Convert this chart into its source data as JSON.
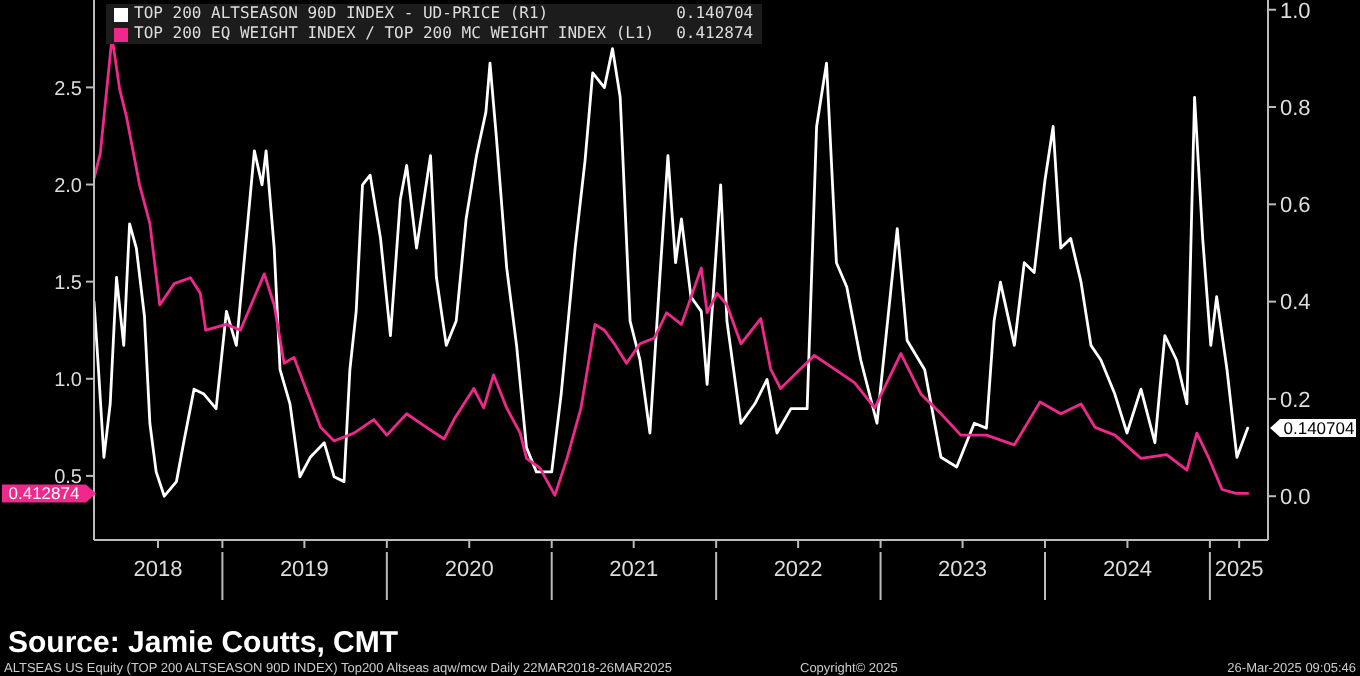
{
  "chart_data": {
    "type": "line",
    "legend": "top left",
    "grid": false,
    "marker": "none",
    "line_style": "solid",
    "xlim": [
      "2018-03-22",
      "2025-05-10"
    ],
    "xticks": [
      {
        "value": "2018-08-11",
        "label": "2018"
      },
      {
        "value": "2019-01-01",
        "label": null
      },
      {
        "value": "2019-07-02",
        "label": "2019"
      },
      {
        "value": "2020-01-01",
        "label": null
      },
      {
        "value": "2020-07-02",
        "label": "2020"
      },
      {
        "value": "2021-01-01",
        "label": null
      },
      {
        "value": "2021-07-02",
        "label": "2021"
      },
      {
        "value": "2022-01-01",
        "label": null
      },
      {
        "value": "2022-07-02",
        "label": "2022"
      },
      {
        "value": "2023-01-01",
        "label": null
      },
      {
        "value": "2023-07-02",
        "label": "2023"
      },
      {
        "value": "2024-01-01",
        "label": null
      },
      {
        "value": "2024-07-02",
        "label": "2024"
      },
      {
        "value": "2025-01-01",
        "label": null
      },
      {
        "value": "2025-03-07",
        "label": "2025"
      }
    ],
    "ylim": [
      0.17,
      2.95
    ],
    "yticks": [
      0.5,
      {
        "value": 1.0,
        "label": "1.0"
      },
      1.5,
      {
        "value": 2.0,
        "label": "2.0"
      },
      2.5
    ],
    "y2lim": [
      -0.09,
      1.02
    ],
    "y2ticks": [
      {
        "value": 0,
        "label": "0.0"
      },
      0.2,
      0.4,
      0.6,
      0.8,
      {
        "value": 1.0,
        "label": "1.0"
      }
    ],
    "annotations": [
      "Source: Jamie Coutts, CMT",
      "ALTSEAS US Equity (TOP 200 ALTSEASON 90D INDEX) Top200 Altseas aqw/mcw  Daily 22MAR2018-26MAR2025",
      "Copyright© 2025",
      "26-Mar-2025 09:05:46",
      "0.140704",
      "0.412874"
    ],
    "series": [
      {
        "name": "TOP 200 ALTSEASON 90D INDEX - UD-PRICE (R1)",
        "color": "#ffffff",
        "axis": "y2",
        "x": [
          "2018-03-22",
          "2018-04-01",
          "2018-04-13",
          "2018-04-27",
          "2018-05-11",
          "2018-05-27",
          "2018-06-09",
          "2018-06-24",
          "2018-07-12",
          "2018-07-24",
          "2018-08-07",
          "2018-08-25",
          "2018-09-21",
          "2018-10-07",
          "2018-10-30",
          "2018-11-21",
          "2018-12-18",
          "2019-01-10",
          "2019-02-01",
          "2019-02-23",
          "2019-03-13",
          "2019-03-30",
          "2019-04-08",
          "2019-04-26",
          "2019-05-09",
          "2019-05-31",
          "2019-06-22",
          "2019-07-15",
          "2019-08-15",
          "2019-09-06",
          "2019-09-28",
          "2019-10-11",
          "2019-10-25",
          "2019-11-08",
          "2019-11-25",
          "2019-12-18",
          "2020-01-09",
          "2020-01-31",
          "2020-02-14",
          "2020-03-07",
          "2020-04-07",
          "2020-04-20",
          "2020-05-12",
          "2020-06-03",
          "2020-06-25",
          "2020-07-18",
          "2020-08-08",
          "2020-08-17",
          "2020-08-31",
          "2020-09-23",
          "2020-10-15",
          "2020-11-06",
          "2020-11-28",
          "2021-01-01",
          "2021-01-22",
          "2021-02-22",
          "2021-03-16",
          "2021-04-02",
          "2021-04-28",
          "2021-05-16",
          "2021-06-02",
          "2021-06-24",
          "2021-07-16",
          "2021-08-07",
          "2021-08-29",
          "2021-09-16",
          "2021-10-03",
          "2021-10-16",
          "2021-11-06",
          "2021-11-29",
          "2021-12-12",
          "2022-01-11",
          "2022-01-25",
          "2022-02-25",
          "2022-03-28",
          "2022-04-24",
          "2022-05-16",
          "2022-06-16",
          "2022-07-22",
          "2022-08-12",
          "2022-09-03",
          "2022-09-25",
          "2022-10-18",
          "2022-11-18",
          "2022-12-24",
          "2023-02-07",
          "2023-03-01",
          "2023-04-09",
          "2023-05-15",
          "2023-06-19",
          "2023-07-28",
          "2023-08-24",
          "2023-09-10",
          "2023-09-24",
          "2023-10-25",
          "2023-11-16",
          "2023-12-08",
          "2024-01-01",
          "2024-01-19",
          "2024-02-05",
          "2024-02-27",
          "2024-03-21",
          "2024-04-12",
          "2024-05-04",
          "2024-06-04",
          "2024-07-01",
          "2024-08-01",
          "2024-09-01",
          "2024-09-23",
          "2024-10-19",
          "2024-11-11",
          "2024-11-28",
          "2024-12-16",
          "2025-01-03",
          "2025-01-16",
          "2025-02-08",
          "2025-03-02",
          "2025-03-26"
        ],
        "values": [
          0.4,
          0.26,
          0.08,
          0.19,
          0.45,
          0.31,
          0.56,
          0.51,
          0.37,
          0.15,
          0.05,
          0.0,
          0.03,
          0.11,
          0.22,
          0.21,
          0.18,
          0.38,
          0.31,
          0.53,
          0.71,
          0.64,
          0.71,
          0.51,
          0.26,
          0.19,
          0.04,
          0.08,
          0.11,
          0.04,
          0.03,
          0.26,
          0.38,
          0.64,
          0.66,
          0.53,
          0.33,
          0.61,
          0.68,
          0.51,
          0.7,
          0.45,
          0.31,
          0.36,
          0.57,
          0.7,
          0.79,
          0.89,
          0.74,
          0.47,
          0.31,
          0.1,
          0.05,
          0.05,
          0.21,
          0.51,
          0.69,
          0.87,
          0.84,
          0.92,
          0.82,
          0.36,
          0.28,
          0.13,
          0.45,
          0.7,
          0.48,
          0.57,
          0.41,
          0.38,
          0.23,
          0.64,
          0.36,
          0.15,
          0.19,
          0.24,
          0.13,
          0.18,
          0.18,
          0.76,
          0.89,
          0.48,
          0.43,
          0.28,
          0.15,
          0.55,
          0.32,
          0.26,
          0.08,
          0.06,
          0.15,
          0.14,
          0.36,
          0.44,
          0.31,
          0.48,
          0.46,
          0.65,
          0.76,
          0.51,
          0.53,
          0.44,
          0.31,
          0.28,
          0.21,
          0.13,
          0.22,
          0.11,
          0.33,
          0.28,
          0.19,
          0.82,
          0.53,
          0.31,
          0.41,
          0.26,
          0.08,
          0.14
        ]
      },
      {
        "name": "TOP 200 EQ WEIGHT INDEX / TOP 200 MC WEIGHT INDEX (L1)",
        "color": "#f0288c",
        "axis": "y",
        "x": [
          "2018-03-22",
          "2018-04-05",
          "2018-05-01",
          "2018-05-18",
          "2018-06-02",
          "2018-07-01",
          "2018-07-24",
          "2018-08-15",
          "2018-09-16",
          "2018-10-22",
          "2018-11-13",
          "2018-11-25",
          "2019-01-10",
          "2019-02-10",
          "2019-04-04",
          "2019-04-26",
          "2019-05-18",
          "2019-06-09",
          "2019-07-05",
          "2019-08-07",
          "2019-09-06",
          "2019-10-20",
          "2019-12-03",
          "2020-01-01",
          "2020-02-14",
          "2020-03-29",
          "2020-05-07",
          "2020-05-29",
          "2020-07-12",
          "2020-08-03",
          "2020-08-25",
          "2020-09-23",
          "2020-10-23",
          "2020-11-06",
          "2020-12-06",
          "2021-01-08",
          "2021-02-04",
          "2021-03-07",
          "2021-04-07",
          "2021-04-28",
          "2021-05-20",
          "2021-06-16",
          "2021-07-16",
          "2021-08-17",
          "2021-09-13",
          "2021-10-16",
          "2021-11-29",
          "2021-12-12",
          "2022-01-03",
          "2022-01-25",
          "2022-02-25",
          "2022-04-10",
          "2022-05-02",
          "2022-05-24",
          "2022-07-07",
          "2022-08-07",
          "2022-09-21",
          "2022-11-04",
          "2022-12-19",
          "2023-02-15",
          "2023-04-01",
          "2023-05-15",
          "2023-06-28",
          "2023-08-24",
          "2023-10-25",
          "2023-12-21",
          "2024-02-05",
          "2024-03-21",
          "2024-04-21",
          "2024-06-04",
          "2024-08-01",
          "2024-09-27",
          "2024-11-11",
          "2024-12-03",
          "2024-12-30",
          "2025-01-28",
          "2025-02-28",
          "2025-03-26"
        ],
        "values": [
          2.03,
          2.16,
          2.76,
          2.49,
          2.35,
          2.0,
          1.8,
          1.38,
          1.49,
          1.52,
          1.44,
          1.25,
          1.28,
          1.25,
          1.54,
          1.38,
          1.08,
          1.11,
          0.95,
          0.75,
          0.68,
          0.72,
          0.79,
          0.71,
          0.82,
          0.75,
          0.69,
          0.79,
          0.95,
          0.85,
          1.02,
          0.85,
          0.72,
          0.59,
          0.54,
          0.4,
          0.59,
          0.85,
          1.28,
          1.25,
          1.18,
          1.08,
          1.18,
          1.21,
          1.34,
          1.28,
          1.57,
          1.34,
          1.44,
          1.38,
          1.18,
          1.31,
          1.05,
          0.95,
          1.05,
          1.12,
          1.05,
          0.98,
          0.85,
          1.13,
          0.92,
          0.82,
          0.71,
          0.71,
          0.66,
          0.88,
          0.82,
          0.87,
          0.75,
          0.71,
          0.59,
          0.61,
          0.53,
          0.72,
          0.59,
          0.43,
          0.41,
          0.41
        ]
      }
    ]
  }
}
